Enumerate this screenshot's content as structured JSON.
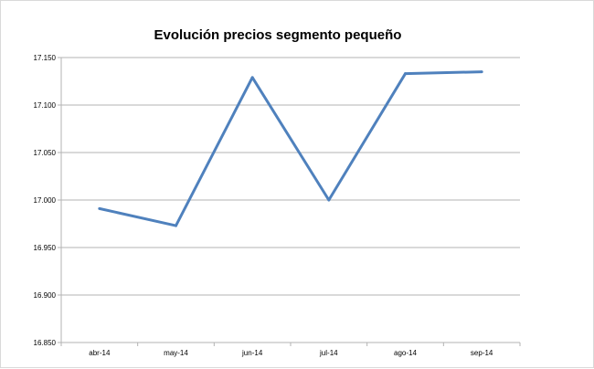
{
  "chart_data": {
    "type": "line",
    "title": "Evolución precios segmento pequeño",
    "xlabel": "",
    "ylabel": "",
    "categories": [
      "abr-14",
      "may-14",
      "jun-14",
      "jul-14",
      "ago-14",
      "sep-14"
    ],
    "series": [
      {
        "values": [
          16.991,
          16.973,
          17.129,
          17.0,
          17.133,
          17.135
        ],
        "color": "#4f81bd"
      }
    ],
    "ylim": [
      16.85,
      17.15
    ],
    "yticks": [
      16.85,
      16.9,
      16.95,
      17.0,
      17.05,
      17.1,
      17.15
    ],
    "ytick_labels": [
      "16.850",
      "16.900",
      "16.950",
      "17.000",
      "17.050",
      "17.100",
      "17.150"
    ],
    "grid": true,
    "legend": "none"
  }
}
